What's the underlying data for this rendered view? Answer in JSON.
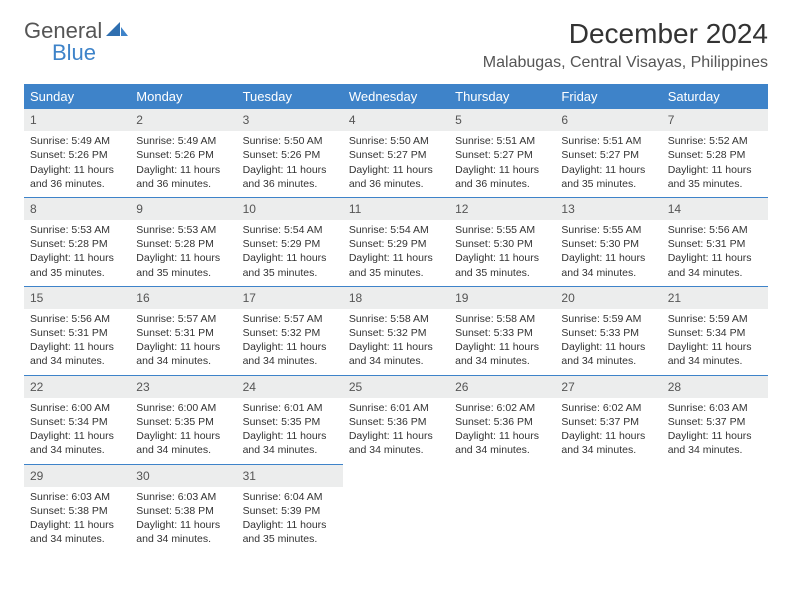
{
  "logo": {
    "text1": "General",
    "text2": "Blue",
    "color_general": "#555555",
    "color_blue": "#3e83c9"
  },
  "title": "December 2024",
  "location": "Malabugas, Central Visayas, Philippines",
  "header_bg": "#3e83c9",
  "header_fg": "#ffffff",
  "daynum_bg": "#eceded",
  "border_color": "#3e83c9",
  "day_headers": [
    "Sunday",
    "Monday",
    "Tuesday",
    "Wednesday",
    "Thursday",
    "Friday",
    "Saturday"
  ],
  "weeks": [
    [
      {
        "n": "1",
        "sr": "Sunrise: 5:49 AM",
        "ss": "Sunset: 5:26 PM",
        "dl1": "Daylight: 11 hours",
        "dl2": "and 36 minutes."
      },
      {
        "n": "2",
        "sr": "Sunrise: 5:49 AM",
        "ss": "Sunset: 5:26 PM",
        "dl1": "Daylight: 11 hours",
        "dl2": "and 36 minutes."
      },
      {
        "n": "3",
        "sr": "Sunrise: 5:50 AM",
        "ss": "Sunset: 5:26 PM",
        "dl1": "Daylight: 11 hours",
        "dl2": "and 36 minutes."
      },
      {
        "n": "4",
        "sr": "Sunrise: 5:50 AM",
        "ss": "Sunset: 5:27 PM",
        "dl1": "Daylight: 11 hours",
        "dl2": "and 36 minutes."
      },
      {
        "n": "5",
        "sr": "Sunrise: 5:51 AM",
        "ss": "Sunset: 5:27 PM",
        "dl1": "Daylight: 11 hours",
        "dl2": "and 36 minutes."
      },
      {
        "n": "6",
        "sr": "Sunrise: 5:51 AM",
        "ss": "Sunset: 5:27 PM",
        "dl1": "Daylight: 11 hours",
        "dl2": "and 35 minutes."
      },
      {
        "n": "7",
        "sr": "Sunrise: 5:52 AM",
        "ss": "Sunset: 5:28 PM",
        "dl1": "Daylight: 11 hours",
        "dl2": "and 35 minutes."
      }
    ],
    [
      {
        "n": "8",
        "sr": "Sunrise: 5:53 AM",
        "ss": "Sunset: 5:28 PM",
        "dl1": "Daylight: 11 hours",
        "dl2": "and 35 minutes."
      },
      {
        "n": "9",
        "sr": "Sunrise: 5:53 AM",
        "ss": "Sunset: 5:28 PM",
        "dl1": "Daylight: 11 hours",
        "dl2": "and 35 minutes."
      },
      {
        "n": "10",
        "sr": "Sunrise: 5:54 AM",
        "ss": "Sunset: 5:29 PM",
        "dl1": "Daylight: 11 hours",
        "dl2": "and 35 minutes."
      },
      {
        "n": "11",
        "sr": "Sunrise: 5:54 AM",
        "ss": "Sunset: 5:29 PM",
        "dl1": "Daylight: 11 hours",
        "dl2": "and 35 minutes."
      },
      {
        "n": "12",
        "sr": "Sunrise: 5:55 AM",
        "ss": "Sunset: 5:30 PM",
        "dl1": "Daylight: 11 hours",
        "dl2": "and 35 minutes."
      },
      {
        "n": "13",
        "sr": "Sunrise: 5:55 AM",
        "ss": "Sunset: 5:30 PM",
        "dl1": "Daylight: 11 hours",
        "dl2": "and 34 minutes."
      },
      {
        "n": "14",
        "sr": "Sunrise: 5:56 AM",
        "ss": "Sunset: 5:31 PM",
        "dl1": "Daylight: 11 hours",
        "dl2": "and 34 minutes."
      }
    ],
    [
      {
        "n": "15",
        "sr": "Sunrise: 5:56 AM",
        "ss": "Sunset: 5:31 PM",
        "dl1": "Daylight: 11 hours",
        "dl2": "and 34 minutes."
      },
      {
        "n": "16",
        "sr": "Sunrise: 5:57 AM",
        "ss": "Sunset: 5:31 PM",
        "dl1": "Daylight: 11 hours",
        "dl2": "and 34 minutes."
      },
      {
        "n": "17",
        "sr": "Sunrise: 5:57 AM",
        "ss": "Sunset: 5:32 PM",
        "dl1": "Daylight: 11 hours",
        "dl2": "and 34 minutes."
      },
      {
        "n": "18",
        "sr": "Sunrise: 5:58 AM",
        "ss": "Sunset: 5:32 PM",
        "dl1": "Daylight: 11 hours",
        "dl2": "and 34 minutes."
      },
      {
        "n": "19",
        "sr": "Sunrise: 5:58 AM",
        "ss": "Sunset: 5:33 PM",
        "dl1": "Daylight: 11 hours",
        "dl2": "and 34 minutes."
      },
      {
        "n": "20",
        "sr": "Sunrise: 5:59 AM",
        "ss": "Sunset: 5:33 PM",
        "dl1": "Daylight: 11 hours",
        "dl2": "and 34 minutes."
      },
      {
        "n": "21",
        "sr": "Sunrise: 5:59 AM",
        "ss": "Sunset: 5:34 PM",
        "dl1": "Daylight: 11 hours",
        "dl2": "and 34 minutes."
      }
    ],
    [
      {
        "n": "22",
        "sr": "Sunrise: 6:00 AM",
        "ss": "Sunset: 5:34 PM",
        "dl1": "Daylight: 11 hours",
        "dl2": "and 34 minutes."
      },
      {
        "n": "23",
        "sr": "Sunrise: 6:00 AM",
        "ss": "Sunset: 5:35 PM",
        "dl1": "Daylight: 11 hours",
        "dl2": "and 34 minutes."
      },
      {
        "n": "24",
        "sr": "Sunrise: 6:01 AM",
        "ss": "Sunset: 5:35 PM",
        "dl1": "Daylight: 11 hours",
        "dl2": "and 34 minutes."
      },
      {
        "n": "25",
        "sr": "Sunrise: 6:01 AM",
        "ss": "Sunset: 5:36 PM",
        "dl1": "Daylight: 11 hours",
        "dl2": "and 34 minutes."
      },
      {
        "n": "26",
        "sr": "Sunrise: 6:02 AM",
        "ss": "Sunset: 5:36 PM",
        "dl1": "Daylight: 11 hours",
        "dl2": "and 34 minutes."
      },
      {
        "n": "27",
        "sr": "Sunrise: 6:02 AM",
        "ss": "Sunset: 5:37 PM",
        "dl1": "Daylight: 11 hours",
        "dl2": "and 34 minutes."
      },
      {
        "n": "28",
        "sr": "Sunrise: 6:03 AM",
        "ss": "Sunset: 5:37 PM",
        "dl1": "Daylight: 11 hours",
        "dl2": "and 34 minutes."
      }
    ],
    [
      {
        "n": "29",
        "sr": "Sunrise: 6:03 AM",
        "ss": "Sunset: 5:38 PM",
        "dl1": "Daylight: 11 hours",
        "dl2": "and 34 minutes."
      },
      {
        "n": "30",
        "sr": "Sunrise: 6:03 AM",
        "ss": "Sunset: 5:38 PM",
        "dl1": "Daylight: 11 hours",
        "dl2": "and 34 minutes."
      },
      {
        "n": "31",
        "sr": "Sunrise: 6:04 AM",
        "ss": "Sunset: 5:39 PM",
        "dl1": "Daylight: 11 hours",
        "dl2": "and 35 minutes."
      },
      null,
      null,
      null,
      null
    ]
  ]
}
